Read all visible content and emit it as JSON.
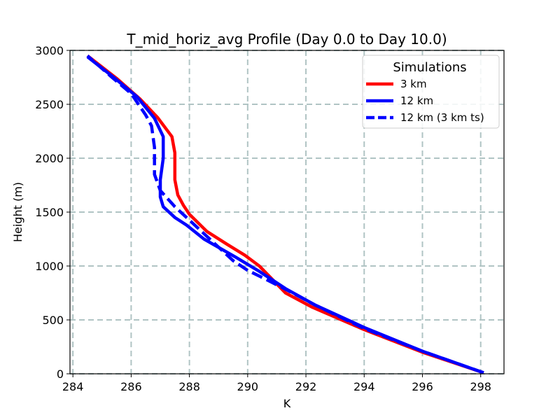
{
  "chart_data": {
    "type": "line",
    "title": "T_mid_horiz_avg Profile (Day 0.0 to Day 10.0)",
    "xlabel": "K",
    "ylabel": "Height (m)",
    "xlim": [
      283.9,
      298.8
    ],
    "ylim": [
      0,
      3000
    ],
    "xticks": [
      284,
      286,
      288,
      290,
      292,
      294,
      296,
      298
    ],
    "yticks": [
      0,
      500,
      1000,
      1500,
      2000,
      2500,
      3000
    ],
    "grid": true,
    "legend": {
      "title": "Simulations",
      "placement": "top-right"
    },
    "series": [
      {
        "name": "3 km",
        "color": "#ff0000",
        "style": "solid",
        "points": [
          [
            298.1,
            10
          ],
          [
            296.0,
            200
          ],
          [
            294.0,
            410
          ],
          [
            292.2,
            620
          ],
          [
            291.3,
            750
          ],
          [
            290.4,
            1000
          ],
          [
            289.9,
            1100
          ],
          [
            289.3,
            1200
          ],
          [
            288.6,
            1320
          ],
          [
            288.0,
            1480
          ],
          [
            287.8,
            1560
          ],
          [
            287.6,
            1660
          ],
          [
            287.5,
            1800
          ],
          [
            287.5,
            2050
          ],
          [
            287.4,
            2200
          ],
          [
            286.9,
            2380
          ],
          [
            286.3,
            2550
          ],
          [
            285.5,
            2740
          ],
          [
            284.5,
            2950
          ]
        ]
      },
      {
        "name": "12 km",
        "color": "#0000ff",
        "style": "solid",
        "points": [
          [
            298.1,
            10
          ],
          [
            296.0,
            210
          ],
          [
            294.0,
            430
          ],
          [
            292.3,
            640
          ],
          [
            291.3,
            790
          ],
          [
            290.4,
            950
          ],
          [
            289.6,
            1080
          ],
          [
            288.5,
            1250
          ],
          [
            287.9,
            1380
          ],
          [
            287.5,
            1450
          ],
          [
            287.1,
            1550
          ],
          [
            287.0,
            1640
          ],
          [
            287.0,
            1800
          ],
          [
            287.1,
            2000
          ],
          [
            287.1,
            2200
          ],
          [
            286.8,
            2370
          ],
          [
            286.2,
            2570
          ],
          [
            285.4,
            2750
          ],
          [
            284.5,
            2940
          ]
        ]
      },
      {
        "name": "12 km (3 km ts)",
        "color": "#0000ff",
        "style": "dashed",
        "points": [
          [
            298.1,
            10
          ],
          [
            296.0,
            210
          ],
          [
            294.0,
            420
          ],
          [
            292.3,
            640
          ],
          [
            291.4,
            770
          ],
          [
            290.6,
            880
          ],
          [
            290.0,
            960
          ],
          [
            289.5,
            1050
          ],
          [
            288.7,
            1250
          ],
          [
            288.1,
            1400
          ],
          [
            287.5,
            1550
          ],
          [
            287.0,
            1700
          ],
          [
            286.8,
            1850
          ],
          [
            286.8,
            2100
          ],
          [
            286.7,
            2300
          ],
          [
            286.5,
            2400
          ],
          [
            286.0,
            2600
          ],
          [
            285.3,
            2760
          ],
          [
            284.5,
            2950
          ]
        ]
      }
    ]
  }
}
